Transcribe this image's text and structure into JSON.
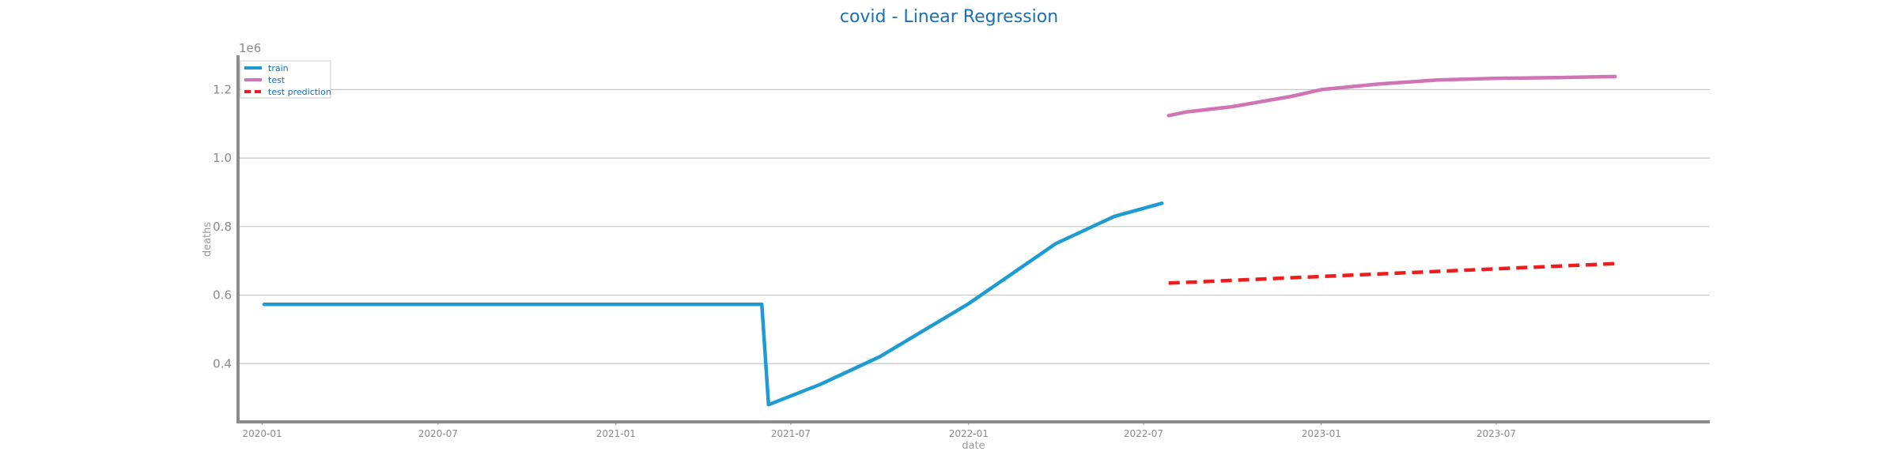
{
  "chart_data": {
    "type": "line",
    "title": "covid - Linear Regression",
    "xlabel": "date",
    "ylabel": "deaths",
    "y_offset_label": "1e6",
    "y_ticks": [
      "0.4",
      "0.6",
      "0.8",
      "1.0",
      "1.2"
    ],
    "x_ticks": [
      "2020-01",
      "2020-07",
      "2021-01",
      "2021-07",
      "2022-01",
      "2022-07",
      "2023-01",
      "2023-07"
    ],
    "ylim": [
      0.23,
      1.3
    ],
    "xlim": [
      "2019-12-07",
      "2024-02-07"
    ],
    "grid": "horizontal",
    "legend_position": "top-left",
    "series": [
      {
        "name": "train",
        "color": "#1f9bd3",
        "style": "solid",
        "x": [
          "2020-01-03",
          "2020-07-01",
          "2021-01-01",
          "2021-06-01",
          "2021-06-08",
          "2021-08-01",
          "2021-10-01",
          "2022-01-01",
          "2022-04-01",
          "2022-06-01",
          "2022-07-20"
        ],
        "y": [
          0.573,
          0.573,
          0.573,
          0.573,
          0.28,
          0.34,
          0.42,
          0.575,
          0.75,
          0.83,
          0.868
        ]
      },
      {
        "name": "test",
        "color": "#cf74b4",
        "style": "solid",
        "x": [
          "2022-07-27",
          "2022-08-15",
          "2022-10-01",
          "2022-12-01",
          "2023-01-01",
          "2023-03-01",
          "2023-05-01",
          "2023-07-01",
          "2023-09-01",
          "2023-11-01"
        ],
        "y": [
          1.124,
          1.135,
          1.15,
          1.18,
          1.2,
          1.216,
          1.228,
          1.233,
          1.235,
          1.238
        ]
      },
      {
        "name": "test prediction",
        "color": "#ee1c1c",
        "style": "dashed",
        "x": [
          "2022-07-27",
          "2023-11-01"
        ],
        "y": [
          0.635,
          0.692
        ]
      }
    ]
  }
}
